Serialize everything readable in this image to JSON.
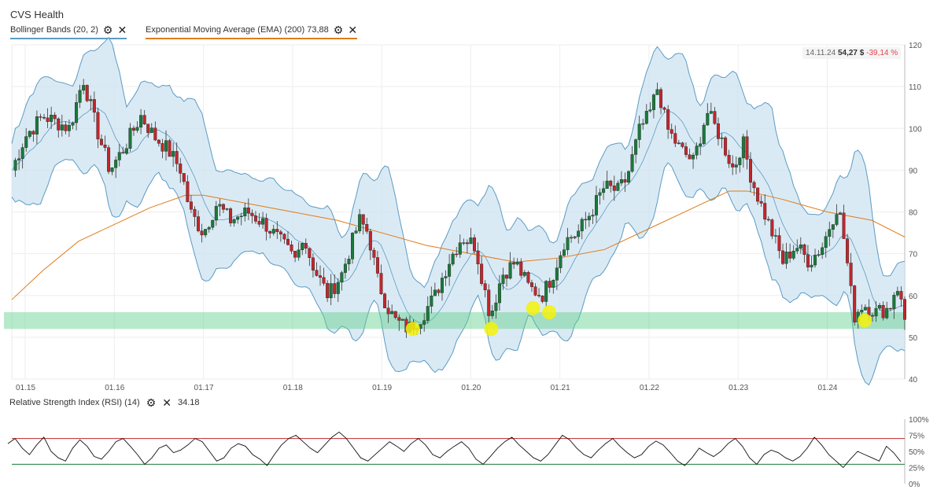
{
  "header": {
    "title": "CVS Health",
    "indicators": [
      {
        "label": "Bollinger Bands (20, 2)",
        "color": "#5b9bc4",
        "settings_icon": "gear-icon",
        "close_icon": "close-icon"
      },
      {
        "label": "Exponential Moving Average (EMA) (200) 73,88",
        "color": "#e07b1a",
        "settings_icon": "gear-icon",
        "close_icon": "close-icon"
      }
    ]
  },
  "last_point": {
    "date": "14.11.24",
    "price": "54,27 $",
    "change": "-39,14 %"
  },
  "chart_data": {
    "type": "candlestick",
    "x_ticks": [
      "01.15",
      "01.16",
      "01.17",
      "01.18",
      "01.19",
      "01.20",
      "01.21",
      "01.22",
      "01.23",
      "01.24"
    ],
    "y_ticks": [
      40,
      50,
      60,
      70,
      80,
      90,
      100,
      110,
      120
    ],
    "ylim": [
      40,
      120
    ],
    "xlim": [
      2014.85,
      2024.87
    ],
    "close": [
      {
        "t": 2014.85,
        "v": 90
      },
      {
        "t": 2015.0,
        "v": 98
      },
      {
        "t": 2015.2,
        "v": 103
      },
      {
        "t": 2015.5,
        "v": 100
      },
      {
        "t": 2015.65,
        "v": 112
      },
      {
        "t": 2015.8,
        "v": 100
      },
      {
        "t": 2015.95,
        "v": 90
      },
      {
        "t": 2016.1,
        "v": 95
      },
      {
        "t": 2016.3,
        "v": 103
      },
      {
        "t": 2016.45,
        "v": 98
      },
      {
        "t": 2016.6,
        "v": 95
      },
      {
        "t": 2016.75,
        "v": 90
      },
      {
        "t": 2016.85,
        "v": 80
      },
      {
        "t": 2017.0,
        "v": 75
      },
      {
        "t": 2017.15,
        "v": 82
      },
      {
        "t": 2017.3,
        "v": 78
      },
      {
        "t": 2017.5,
        "v": 80
      },
      {
        "t": 2017.7,
        "v": 77
      },
      {
        "t": 2017.9,
        "v": 72
      },
      {
        "t": 2018.05,
        "v": 68
      },
      {
        "t": 2018.1,
        "v": 75
      },
      {
        "t": 2018.25,
        "v": 66
      },
      {
        "t": 2018.4,
        "v": 60
      },
      {
        "t": 2018.55,
        "v": 65
      },
      {
        "t": 2018.75,
        "v": 78
      },
      {
        "t": 2018.85,
        "v": 75
      },
      {
        "t": 2018.95,
        "v": 64
      },
      {
        "t": 2019.05,
        "v": 58
      },
      {
        "t": 2019.15,
        "v": 54
      },
      {
        "t": 2019.3,
        "v": 52
      },
      {
        "t": 2019.45,
        "v": 55
      },
      {
        "t": 2019.6,
        "v": 60
      },
      {
        "t": 2019.75,
        "v": 68
      },
      {
        "t": 2019.9,
        "v": 74
      },
      {
        "t": 2020.05,
        "v": 72
      },
      {
        "t": 2020.15,
        "v": 62
      },
      {
        "t": 2020.22,
        "v": 55
      },
      {
        "t": 2020.35,
        "v": 65
      },
      {
        "t": 2020.5,
        "v": 68
      },
      {
        "t": 2020.65,
        "v": 62
      },
      {
        "t": 2020.8,
        "v": 60
      },
      {
        "t": 2020.92,
        "v": 65
      },
      {
        "t": 2021.05,
        "v": 73
      },
      {
        "t": 2021.2,
        "v": 75
      },
      {
        "t": 2021.35,
        "v": 80
      },
      {
        "t": 2021.5,
        "v": 86
      },
      {
        "t": 2021.65,
        "v": 85
      },
      {
        "t": 2021.75,
        "v": 88
      },
      {
        "t": 2021.9,
        "v": 100
      },
      {
        "t": 2022.0,
        "v": 103
      },
      {
        "t": 2022.1,
        "v": 110
      },
      {
        "t": 2022.2,
        "v": 100
      },
      {
        "t": 2022.35,
        "v": 95
      },
      {
        "t": 2022.5,
        "v": 92
      },
      {
        "t": 2022.65,
        "v": 104
      },
      {
        "t": 2022.8,
        "v": 98
      },
      {
        "t": 2022.95,
        "v": 90
      },
      {
        "t": 2023.05,
        "v": 97
      },
      {
        "t": 2023.15,
        "v": 88
      },
      {
        "t": 2023.25,
        "v": 82
      },
      {
        "t": 2023.4,
        "v": 74
      },
      {
        "t": 2023.5,
        "v": 68
      },
      {
        "t": 2023.65,
        "v": 72
      },
      {
        "t": 2023.8,
        "v": 68
      },
      {
        "t": 2023.95,
        "v": 72
      },
      {
        "t": 2024.05,
        "v": 78
      },
      {
        "t": 2024.12,
        "v": 82
      },
      {
        "t": 2024.2,
        "v": 72
      },
      {
        "t": 2024.3,
        "v": 55
      },
      {
        "t": 2024.4,
        "v": 58
      },
      {
        "t": 2024.55,
        "v": 56
      },
      {
        "t": 2024.7,
        "v": 57
      },
      {
        "t": 2024.78,
        "v": 63
      },
      {
        "t": 2024.87,
        "v": 54.27
      }
    ],
    "ema": [
      {
        "t": 2014.85,
        "v": 59
      },
      {
        "t": 2015.2,
        "v": 66
      },
      {
        "t": 2015.6,
        "v": 73
      },
      {
        "t": 2016.0,
        "v": 77
      },
      {
        "t": 2016.4,
        "v": 81
      },
      {
        "t": 2016.8,
        "v": 84
      },
      {
        "t": 2017.0,
        "v": 84
      },
      {
        "t": 2017.5,
        "v": 82
      },
      {
        "t": 2018.0,
        "v": 80
      },
      {
        "t": 2018.5,
        "v": 78
      },
      {
        "t": 2019.0,
        "v": 75
      },
      {
        "t": 2019.5,
        "v": 72
      },
      {
        "t": 2020.0,
        "v": 70
      },
      {
        "t": 2020.5,
        "v": 68
      },
      {
        "t": 2021.0,
        "v": 69
      },
      {
        "t": 2021.5,
        "v": 71
      },
      {
        "t": 2022.0,
        "v": 76
      },
      {
        "t": 2022.5,
        "v": 81
      },
      {
        "t": 2022.9,
        "v": 85
      },
      {
        "t": 2023.1,
        "v": 85
      },
      {
        "t": 2023.5,
        "v": 83
      },
      {
        "t": 2024.0,
        "v": 80
      },
      {
        "t": 2024.5,
        "v": 78
      },
      {
        "t": 2024.87,
        "v": 74
      }
    ],
    "support_zone": [
      52,
      56
    ],
    "highlights": [
      {
        "t": 2019.35,
        "v": 52
      },
      {
        "t": 2020.23,
        "v": 52
      },
      {
        "t": 2020.7,
        "v": 57
      },
      {
        "t": 2020.88,
        "v": 56
      },
      {
        "t": 2024.42,
        "v": 54
      }
    ]
  },
  "rsi": {
    "label": "Relative Strength Index (RSI) (14)",
    "value": "34.18",
    "y_ticks": [
      "100%",
      "75%",
      "50%",
      "25%",
      "0%"
    ],
    "levels": [
      30,
      70
    ],
    "series": [
      62,
      70,
      55,
      45,
      60,
      72,
      50,
      40,
      35,
      55,
      68,
      58,
      42,
      38,
      50,
      65,
      70,
      58,
      45,
      30,
      40,
      55,
      60,
      48,
      52,
      60,
      70,
      65,
      50,
      35,
      40,
      55,
      62,
      58,
      45,
      38,
      28,
      45,
      60,
      70,
      75,
      65,
      55,
      48,
      60,
      72,
      80,
      70,
      55,
      40,
      35,
      45,
      55,
      65,
      58,
      50,
      62,
      70,
      60,
      45,
      40,
      50,
      58,
      65,
      55,
      38,
      30,
      42,
      55,
      65,
      72,
      60,
      50,
      40,
      35,
      45,
      60,
      75,
      68,
      55,
      45,
      40,
      52,
      62,
      70,
      58,
      48,
      40,
      45,
      58,
      66,
      60,
      48,
      35,
      28,
      40,
      55,
      48,
      42,
      50,
      62,
      70,
      58,
      40,
      30,
      45,
      52,
      48,
      40,
      35,
      42,
      55,
      72,
      60,
      45,
      35,
      25,
      38,
      50,
      45,
      40,
      35,
      58,
      48,
      34
    ]
  }
}
